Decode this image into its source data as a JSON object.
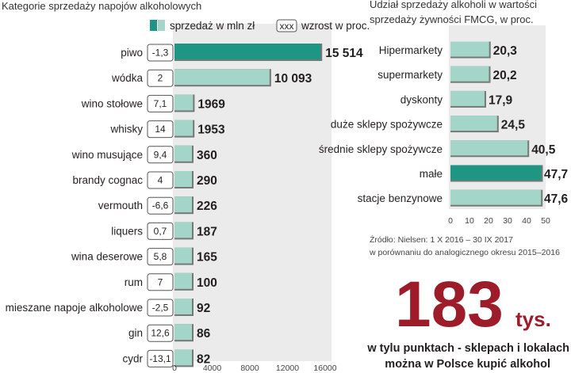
{
  "left_title": "Kategorie sprzedaży napojów alkoholowych",
  "legend": {
    "sales_label": "sprzedaż w mln zł",
    "growth_box_text": "xxx",
    "growth_label": "wzrost w proc."
  },
  "right_title_line1": "Udział sprzedaży alkoholi w wartości",
  "right_title_line2": "sprzedaży żywności FMCG, w proc.",
  "source_line1": "Źródło: Nielsen: 1 X 2016 – 30 IX 2017",
  "source_line2": "w porównaniu do analogicznego okresu 2015–2016",
  "big_number": "183",
  "big_unit": "tys.",
  "caption_line1": "w tylu punktach - sklepach i lokalach",
  "caption_line2": "można w Polsce kupić alkohol",
  "colors": {
    "dark_teal": "#1e9683",
    "light_teal": "#a3d6c8",
    "panel_bg": "#ebebeb",
    "red": "#9e1b2a"
  },
  "chart_data": [
    {
      "type": "bar",
      "orientation": "horizontal",
      "title": "Kategorie sprzedaży napojów alkoholowych",
      "categories": [
        "piwo",
        "wódka",
        "wino stołowe",
        "whisky",
        "wino musujące",
        "brandy cognac",
        "vermouth",
        "liquers",
        "wina deserowe",
        "rum",
        "mieszane napoje alkoholowe",
        "gin",
        "cydr"
      ],
      "values": [
        15514,
        10093,
        1969,
        1953,
        360,
        290,
        226,
        187,
        165,
        100,
        92,
        86,
        82
      ],
      "value_labels": [
        "15 514",
        "10 093",
        "1969",
        "1953",
        "360",
        "290",
        "226",
        "187",
        "165",
        "100",
        "92",
        "86",
        "82"
      ],
      "growth_labels": [
        "-1,3",
        "2",
        "7,1",
        "14",
        "9,4",
        "4",
        "-6,6",
        "0,7",
        "5,8",
        "7",
        "-2,5",
        "12,6",
        "-13,1"
      ],
      "highlight_index": 0,
      "xlim": [
        0,
        16000
      ],
      "xticks": [
        "0",
        "4000",
        "8000",
        "12000",
        "16000"
      ]
    },
    {
      "type": "bar",
      "orientation": "horizontal",
      "title": "Udział sprzedaży alkoholi w wartości sprzedaży żywności FMCG, w proc.",
      "categories": [
        "Hipermarkety",
        "supermarkety",
        "dyskonty",
        "duże sklepy spożywcze",
        "średnie sklepy spożywcze",
        "małe",
        "stacje benzynowe"
      ],
      "values": [
        20.3,
        20.2,
        17.9,
        24.5,
        40.5,
        47.7,
        47.6
      ],
      "value_labels": [
        "20,3",
        "20,2",
        "17,9",
        "24,5",
        "40,5",
        "47,7",
        "47,6"
      ],
      "highlight_index": 5,
      "xlim": [
        0,
        50
      ],
      "xticks": [
        "0",
        "10",
        "20",
        "30",
        "40",
        "50"
      ]
    }
  ]
}
